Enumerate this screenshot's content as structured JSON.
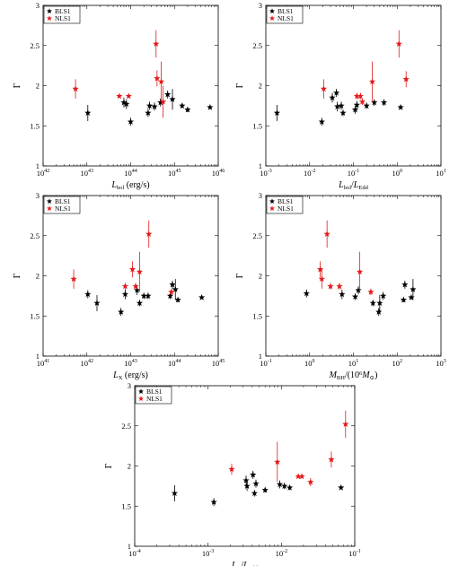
{
  "chart_data": [
    {
      "type": "scatter",
      "xscale": "log",
      "xlim": [
        1e+42,
        1e+46
      ],
      "ylim": [
        1,
        3
      ],
      "xlabel": "L_bol (erg/s)",
      "ylabel": "Γ",
      "xticks": [
        {
          "value": 1e+42,
          "base": "10",
          "exp": "42"
        },
        {
          "value": 1e+43,
          "base": "10",
          "exp": "43"
        },
        {
          "value": 1e+44,
          "base": "10",
          "exp": "44"
        },
        {
          "value": 1e+45,
          "base": "10",
          "exp": "45"
        },
        {
          "value": 1e+46,
          "base": "10",
          "exp": "46"
        }
      ],
      "yticks": [
        1,
        1.5,
        2,
        2.5,
        3
      ],
      "ytick_labels": [
        "1",
        "1.5",
        "2",
        "2.5",
        "3"
      ],
      "legend": {
        "position": "top-left",
        "entries": [
          "BLS1",
          "NLS1"
        ]
      },
      "series": [
        {
          "name": "BLS1",
          "color": "#000000",
          "points": [
            {
              "x": 1.05e+43,
              "y": 1.66,
              "err": 0.1
            },
            {
              "x": 7e+43,
              "y": 1.79,
              "err": 0.06
            },
            {
              "x": 8e+43,
              "y": 1.77,
              "err": 0.06
            },
            {
              "x": 1e+44,
              "y": 1.55,
              "err": 0.05
            },
            {
              "x": 2.5e+44,
              "y": 1.66,
              "err": 0.05
            },
            {
              "x": 2.7e+44,
              "y": 1.75,
              "err": 0.05
            },
            {
              "x": 3.5e+44,
              "y": 1.74,
              "err": 0.05
            },
            {
              "x": 4.8e+44,
              "y": 1.79,
              "err": 0.05
            },
            {
              "x": 7e+44,
              "y": 1.89,
              "err": 0.05
            },
            {
              "x": 9e+44,
              "y": 1.83,
              "err": 0.13
            },
            {
              "x": 1.5e+45,
              "y": 1.75,
              "err": 0.03
            },
            {
              "x": 2e+45,
              "y": 1.7,
              "err": 0.03
            },
            {
              "x": 6.5e+45,
              "y": 1.73,
              "err": 0.02
            }
          ]
        },
        {
          "name": "NLS1",
          "color": "#e41a1c",
          "points": [
            {
              "x": 5.5e+42,
              "y": 1.96,
              "err": 0.12
            },
            {
              "x": 5.5e+43,
              "y": 1.87,
              "err": 0.02
            },
            {
              "x": 9e+43,
              "y": 1.87,
              "err": 0.02
            },
            {
              "x": 3.8e+44,
              "y": 2.52,
              "err": 0.17
            },
            {
              "x": 4e+44,
              "y": 2.09,
              "err": 0.1
            },
            {
              "x": 5e+44,
              "y": 2.05,
              "err": 0.25
            },
            {
              "x": 5.5e+44,
              "y": 1.8,
              "err": 0.2
            }
          ]
        }
      ]
    },
    {
      "type": "scatter",
      "xscale": "log",
      "xlim": [
        0.001,
        10
      ],
      "ylim": [
        1,
        3
      ],
      "xlabel": "L_bol/L_Edd",
      "ylabel": "Γ",
      "xticks": [
        {
          "value": 0.001,
          "base": "10",
          "exp": "-3"
        },
        {
          "value": 0.01,
          "base": "10",
          "exp": "-2"
        },
        {
          "value": 0.1,
          "base": "10",
          "exp": "-1"
        },
        {
          "value": 1,
          "base": "10",
          "exp": "0"
        },
        {
          "value": 10,
          "base": "10",
          "exp": "1"
        }
      ],
      "yticks": [
        1,
        1.5,
        2,
        2.5,
        3
      ],
      "ytick_labels": [
        "1",
        "1.5",
        "2",
        "2.5",
        "3"
      ],
      "legend": {
        "position": "top-left",
        "entries": [
          "BLS1",
          "NLS1"
        ]
      },
      "series": [
        {
          "name": "BLS1",
          "color": "#000000",
          "points": [
            {
              "x": 0.0018,
              "y": 1.66,
              "err": 0.1
            },
            {
              "x": 0.019,
              "y": 1.55,
              "err": 0.05
            },
            {
              "x": 0.033,
              "y": 1.85,
              "err": 0.06
            },
            {
              "x": 0.041,
              "y": 1.91,
              "err": 0.05
            },
            {
              "x": 0.043,
              "y": 1.74,
              "err": 0.06
            },
            {
              "x": 0.053,
              "y": 1.75,
              "err": 0.05
            },
            {
              "x": 0.058,
              "y": 1.66,
              "err": 0.04
            },
            {
              "x": 0.11,
              "y": 1.7,
              "err": 0.05
            },
            {
              "x": 0.12,
              "y": 1.76,
              "err": 0.05
            },
            {
              "x": 0.2,
              "y": 1.75,
              "err": 0.04
            },
            {
              "x": 0.3,
              "y": 1.79,
              "err": 0.04
            },
            {
              "x": 0.5,
              "y": 1.79,
              "err": 0.04
            },
            {
              "x": 1.2,
              "y": 1.73,
              "err": 0.02
            }
          ]
        },
        {
          "name": "NLS1",
          "color": "#e41a1c",
          "points": [
            {
              "x": 0.021,
              "y": 1.96,
              "err": 0.12
            },
            {
              "x": 0.12,
              "y": 1.87,
              "err": 0.04
            },
            {
              "x": 0.145,
              "y": 1.87,
              "err": 0.04
            },
            {
              "x": 0.16,
              "y": 1.8,
              "err": 0.04
            },
            {
              "x": 0.27,
              "y": 2.05,
              "err": 0.25
            },
            {
              "x": 1.1,
              "y": 2.52,
              "err": 0.17
            },
            {
              "x": 1.6,
              "y": 2.08,
              "err": 0.1
            }
          ]
        }
      ]
    },
    {
      "type": "scatter",
      "xscale": "log",
      "xlim": [
        1e+41,
        1e+45
      ],
      "ylim": [
        1,
        3
      ],
      "xlabel": "L_X (erg/s)",
      "ylabel": "Γ",
      "xticks": [
        {
          "value": 1e+41,
          "base": "10",
          "exp": "41"
        },
        {
          "value": 1e+42,
          "base": "10",
          "exp": "42"
        },
        {
          "value": 1e+43,
          "base": "10",
          "exp": "43"
        },
        {
          "value": 1e+44,
          "base": "10",
          "exp": "44"
        },
        {
          "value": 1e+45,
          "base": "10",
          "exp": "45"
        }
      ],
      "yticks": [
        1,
        1.5,
        2,
        2.5,
        3
      ],
      "ytick_labels": [
        "1",
        "1.5",
        "2",
        "2.5",
        "3"
      ],
      "legend": {
        "position": "top-left",
        "entries": [
          "BLS1",
          "NLS1"
        ]
      },
      "series": [
        {
          "name": "BLS1",
          "color": "#000000",
          "points": [
            {
              "x": 1.05e+42,
              "y": 1.77,
              "err": 0.05
            },
            {
              "x": 1.7e+42,
              "y": 1.66,
              "err": 0.1
            },
            {
              "x": 6e+42,
              "y": 1.55,
              "err": 0.05
            },
            {
              "x": 7.5e+42,
              "y": 1.77,
              "err": 0.06
            },
            {
              "x": 1.4e+43,
              "y": 1.82,
              "err": 0.06
            },
            {
              "x": 1.6e+43,
              "y": 1.66,
              "err": 0.04
            },
            {
              "x": 2e+43,
              "y": 1.75,
              "err": 0.04
            },
            {
              "x": 2.5e+43,
              "y": 1.75,
              "err": 0.04
            },
            {
              "x": 8e+43,
              "y": 1.75,
              "err": 0.04
            },
            {
              "x": 9e+43,
              "y": 1.89,
              "err": 0.05
            },
            {
              "x": 1.05e+44,
              "y": 1.83,
              "err": 0.13
            },
            {
              "x": 1.2e+44,
              "y": 1.7,
              "err": 0.03
            },
            {
              "x": 4.2e+44,
              "y": 1.73,
              "err": 0.02
            }
          ]
        },
        {
          "name": "NLS1",
          "color": "#e41a1c",
          "points": [
            {
              "x": 5e+41,
              "y": 1.96,
              "err": 0.12
            },
            {
              "x": 7.5e+42,
              "y": 1.87,
              "err": 0.04
            },
            {
              "x": 1.1e+43,
              "y": 2.08,
              "err": 0.1
            },
            {
              "x": 1.3e+43,
              "y": 1.87,
              "err": 0.04
            },
            {
              "x": 1.6e+43,
              "y": 2.05,
              "err": 0.25
            },
            {
              "x": 2.6e+43,
              "y": 2.52,
              "err": 0.17
            },
            {
              "x": 8.5e+43,
              "y": 1.8,
              "err": 0.04
            }
          ]
        }
      ]
    },
    {
      "type": "scatter",
      "xscale": "log",
      "xlim": [
        0.1,
        1000
      ],
      "ylim": [
        1,
        3
      ],
      "xlabel": "M_BH/(10^6 M_sun)",
      "ylabel": "Γ",
      "xticks": [
        {
          "value": 0.1,
          "base": "10",
          "exp": "-1"
        },
        {
          "value": 1,
          "base": "10",
          "exp": "0"
        },
        {
          "value": 10,
          "base": "10",
          "exp": "1"
        },
        {
          "value": 100,
          "base": "10",
          "exp": "2"
        },
        {
          "value": 1000,
          "base": "10",
          "exp": "3"
        }
      ],
      "yticks": [
        1,
        1.5,
        2,
        2.5,
        3
      ],
      "ytick_labels": [
        "1",
        "1.5",
        "2",
        "2.5",
        "3"
      ],
      "legend": {
        "position": "top-left",
        "entries": [
          "BLS1",
          "NLS1"
        ]
      },
      "series": [
        {
          "name": "BLS1",
          "color": "#000000",
          "points": [
            {
              "x": 0.85,
              "y": 1.78,
              "err": 0.05
            },
            {
              "x": 5.5,
              "y": 1.77,
              "err": 0.06
            },
            {
              "x": 11,
              "y": 1.74,
              "err": 0.04
            },
            {
              "x": 13,
              "y": 1.82,
              "err": 0.05
            },
            {
              "x": 28,
              "y": 1.66,
              "err": 0.04
            },
            {
              "x": 38,
              "y": 1.55,
              "err": 0.05
            },
            {
              "x": 40,
              "y": 1.66,
              "err": 0.1
            },
            {
              "x": 48,
              "y": 1.75,
              "err": 0.05
            },
            {
              "x": 140,
              "y": 1.7,
              "err": 0.03
            },
            {
              "x": 150,
              "y": 1.89,
              "err": 0.05
            },
            {
              "x": 210,
              "y": 1.73,
              "err": 0.02
            },
            {
              "x": 230,
              "y": 1.83,
              "err": 0.13
            }
          ]
        },
        {
          "name": "NLS1",
          "color": "#e41a1c",
          "points": [
            {
              "x": 1.75,
              "y": 2.08,
              "err": 0.1
            },
            {
              "x": 1.9,
              "y": 1.96,
              "err": 0.12
            },
            {
              "x": 2.5,
              "y": 2.52,
              "err": 0.17
            },
            {
              "x": 3.0,
              "y": 1.87,
              "err": 0.04
            },
            {
              "x": 4.8,
              "y": 1.87,
              "err": 0.04
            },
            {
              "x": 14,
              "y": 2.05,
              "err": 0.25
            },
            {
              "x": 25,
              "y": 1.8,
              "err": 0.04
            }
          ]
        }
      ]
    },
    {
      "type": "scatter",
      "xscale": "log",
      "xlim": [
        0.0001,
        0.1
      ],
      "ylim": [
        1,
        3
      ],
      "xlabel": "L_X/L_Edd",
      "ylabel": "Γ",
      "xticks": [
        {
          "value": 0.0001,
          "base": "10",
          "exp": "-4"
        },
        {
          "value": 0.001,
          "base": "10",
          "exp": "-3"
        },
        {
          "value": 0.01,
          "base": "10",
          "exp": "-2"
        },
        {
          "value": 0.1,
          "base": "10",
          "exp": "-1"
        }
      ],
      "yticks": [
        1,
        1.5,
        2,
        2.5,
        3
      ],
      "ytick_labels": [
        "1",
        "1.5",
        "2",
        "2.5",
        "3"
      ],
      "legend": {
        "position": "top-left",
        "entries": [
          "BLS1",
          "NLS1"
        ]
      },
      "series": [
        {
          "name": "BLS1",
          "color": "#000000",
          "points": [
            {
              "x": 0.00035,
              "y": 1.66,
              "err": 0.1
            },
            {
              "x": 0.0012,
              "y": 1.55,
              "err": 0.05
            },
            {
              "x": 0.0033,
              "y": 1.82,
              "err": 0.06
            },
            {
              "x": 0.0034,
              "y": 1.75,
              "err": 0.06
            },
            {
              "x": 0.0041,
              "y": 1.89,
              "err": 0.05
            },
            {
              "x": 0.0043,
              "y": 1.66,
              "err": 0.04
            },
            {
              "x": 0.0045,
              "y": 1.78,
              "err": 0.05
            },
            {
              "x": 0.006,
              "y": 1.7,
              "err": 0.03
            },
            {
              "x": 0.0095,
              "y": 1.77,
              "err": 0.05
            },
            {
              "x": 0.011,
              "y": 1.75,
              "err": 0.04
            },
            {
              "x": 0.013,
              "y": 1.73,
              "err": 0.03
            },
            {
              "x": 0.065,
              "y": 1.73,
              "err": 0.02
            }
          ]
        },
        {
          "name": "NLS1",
          "color": "#e41a1c",
          "points": [
            {
              "x": 0.0021,
              "y": 1.96,
              "err": 0.07
            },
            {
              "x": 0.0088,
              "y": 2.05,
              "err": 0.25
            },
            {
              "x": 0.017,
              "y": 1.87,
              "err": 0.02
            },
            {
              "x": 0.019,
              "y": 1.87,
              "err": 0.02
            },
            {
              "x": 0.025,
              "y": 1.8,
              "err": 0.05
            },
            {
              "x": 0.048,
              "y": 2.08,
              "err": 0.1
            },
            {
              "x": 0.075,
              "y": 2.52,
              "err": 0.17
            }
          ]
        }
      ]
    }
  ]
}
